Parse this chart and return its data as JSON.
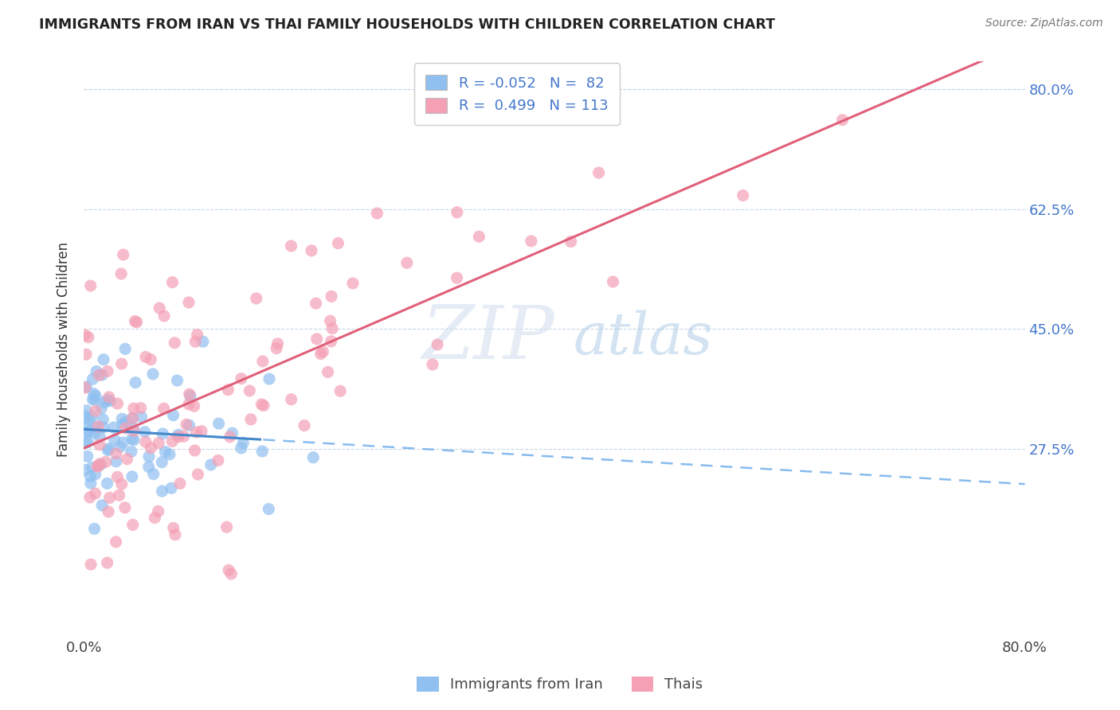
{
  "title": "IMMIGRANTS FROM IRAN VS THAI FAMILY HOUSEHOLDS WITH CHILDREN CORRELATION CHART",
  "source": "Source: ZipAtlas.com",
  "ylabel": "Family Households with Children",
  "xlim": [
    0.0,
    0.8
  ],
  "ylim": [
    0.0,
    0.84
  ],
  "x_ticks": [
    0.0,
    0.8
  ],
  "x_tick_labels": [
    "0.0%",
    "80.0%"
  ],
  "y_tick_labels": [
    "27.5%",
    "45.0%",
    "62.5%",
    "80.0%"
  ],
  "y_tick_vals": [
    0.275,
    0.45,
    0.625,
    0.8
  ],
  "color_iran": "#90C0F0",
  "color_thai": "#F5A0B5",
  "line_color_iran_solid": "#4488CC",
  "line_color_iran_dash": "#88BBEE",
  "line_color_thai": "#E0607A",
  "iran_R": -0.052,
  "iran_N": 82,
  "thai_R": 0.499,
  "thai_N": 113,
  "iran_seed": 42,
  "thai_seed": 99
}
